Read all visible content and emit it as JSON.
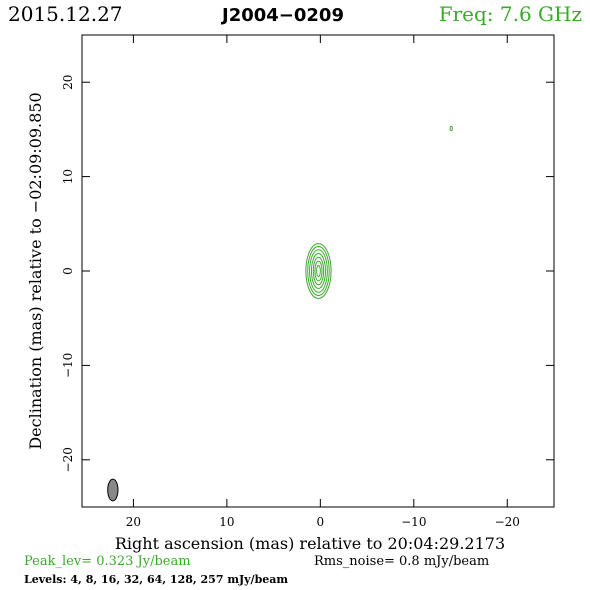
{
  "header": {
    "date": "2015.12.27",
    "source": "J2004−0209",
    "freq": "Freq: 7.6 GHz"
  },
  "footer": {
    "peak": "Peak_lev=  0.323 Jy/beam",
    "rms": "Rms_noise=   0.8 mJy/beam",
    "levels": "Levels:   4,   8,  16,  32,  64, 128, 257 mJy/beam"
  },
  "colors": {
    "contour": "#3aaa2a",
    "beam": "#888888",
    "axes": "#000000"
  },
  "chart_data": {
    "type": "contour",
    "xlabel": "Right ascension (mas) relative to 20:04:29.2173",
    "ylabel": "Declination (mas) relative to −02:09:09.850",
    "xlim": [
      25.5,
      -25
    ],
    "ylim": [
      -25,
      25
    ],
    "xticks": [
      20,
      10,
      0,
      -10,
      -20
    ],
    "yticks": [
      20,
      10,
      0,
      -10,
      -20
    ],
    "xtick_labels": [
      "20",
      "10",
      "0",
      "−10",
      "−20"
    ],
    "ytick_labels": [
      "20",
      "10",
      "0",
      "−10",
      "−20"
    ],
    "contours": [
      {
        "level": 4,
        "x": 0.2,
        "y": 0.0,
        "rx": 1.35,
        "ry": 2.9
      },
      {
        "level": 8,
        "x": 0.2,
        "y": 0.0,
        "rx": 1.15,
        "ry": 2.6
      },
      {
        "level": 16,
        "x": 0.2,
        "y": 0.0,
        "rx": 0.95,
        "ry": 2.25
      },
      {
        "level": 32,
        "x": 0.2,
        "y": 0.0,
        "rx": 0.75,
        "ry": 1.85
      },
      {
        "level": 64,
        "x": 0.2,
        "y": 0.0,
        "rx": 0.55,
        "ry": 1.45
      },
      {
        "level": 128,
        "x": 0.2,
        "y": 0.0,
        "rx": 0.38,
        "ry": 1.05
      },
      {
        "level": 257,
        "x": 0.2,
        "y": 0.0,
        "rx": 0.2,
        "ry": 0.6
      }
    ],
    "extra_contours": [
      {
        "level": 4,
        "x": -14.0,
        "y": 15.1,
        "rx": 0.12,
        "ry": 0.22
      }
    ],
    "beam": {
      "x": 22.2,
      "y": -23.2,
      "bmaj": 2.3,
      "bmin": 1.1,
      "pa": 0
    }
  }
}
